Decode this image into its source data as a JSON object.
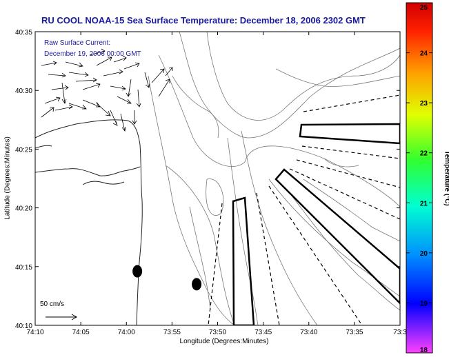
{
  "chart_data": {
    "type": "map",
    "title": "RU COOL  NOAA-15  Sea Surface Temperature:  December 18, 2006 2302 GMT",
    "annotation": [
      "Raw Surface Current:",
      "December 19, 2006 00:00 GMT"
    ],
    "xlabel": "Longitude (Degrees:Minutes)",
    "ylabel": "Latitude (Degrees:Minutes)",
    "x_ticks": [
      "74:10",
      "74:05",
      "74:00",
      "73:55",
      "73:50",
      "73:45",
      "73:40",
      "73:35",
      "73:3"
    ],
    "y_ticks": [
      "40:35",
      "40:30",
      "40:25",
      "40:20",
      "40:15",
      "40:10"
    ],
    "xlim_minutes_west": [
      70,
      30
    ],
    "ylim_minutes_north": [
      10,
      35
    ],
    "scale_label": "50 cm/s",
    "colorbar": {
      "label": "Temperature (°C)",
      "ticks": [
        "25",
        "24",
        "23",
        "22",
        "21",
        "20",
        "19",
        "18"
      ],
      "range": [
        18,
        25
      ]
    },
    "markers": [
      {
        "lon_min_w": 58.8,
        "lat_min_n": 14.6
      },
      {
        "lon_min_w": 52.3,
        "lat_min_n": 13.5
      }
    ]
  }
}
